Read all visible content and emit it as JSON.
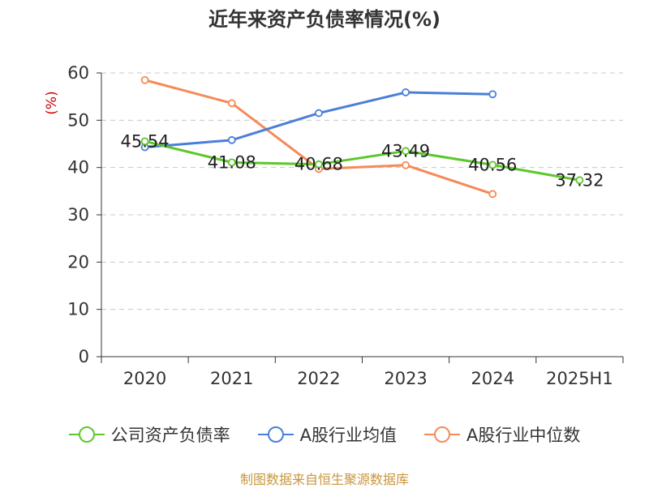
{
  "title": "近年来资产负债率情况(%)",
  "source": "制图数据来自恒生聚源数据库",
  "chart_data": {
    "type": "line",
    "title": "近年来资产负债率情况(%)",
    "ylabel": "(%)",
    "xlabel": "",
    "categories": [
      "2020",
      "2021",
      "2022",
      "2023",
      "2024",
      "2025H1"
    ],
    "ylim": [
      0,
      60
    ],
    "yticks": [
      0,
      10,
      20,
      30,
      40,
      50,
      60
    ],
    "grid": true,
    "legend_position": "bottom",
    "series": [
      {
        "name": "公司资产负债率",
        "color": "#5cc72a",
        "values": [
          45.54,
          41.08,
          40.68,
          43.49,
          40.56,
          37.32
        ],
        "labels": [
          "45.54",
          "41.08",
          "40.68",
          "43.49",
          "40.56",
          "37.32"
        ]
      },
      {
        "name": "A股行业均值",
        "color": "#4a7fd9",
        "values": [
          44.3,
          45.8,
          51.5,
          55.9,
          55.5,
          null
        ]
      },
      {
        "name": "A股行业中位数",
        "color": "#f58a58",
        "values": [
          58.5,
          53.6,
          39.7,
          40.5,
          34.4,
          null
        ]
      }
    ]
  }
}
